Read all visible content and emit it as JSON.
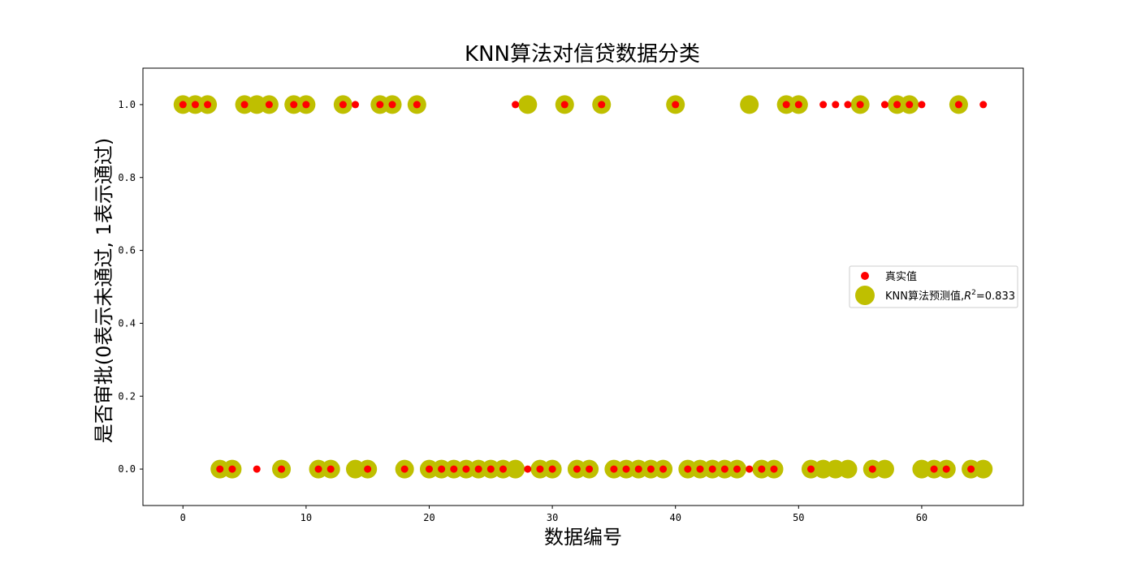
{
  "chart_data": {
    "type": "scatter",
    "title": "KNN算法对信贷数据分类",
    "xlabel": "数据编号",
    "ylabel": "是否审批(0表示未通过, 1表示通过)",
    "xlim": [
      -3.25,
      68.25
    ],
    "ylim": [
      -0.1,
      1.1
    ],
    "xticks": [
      0,
      10,
      20,
      30,
      40,
      50,
      60
    ],
    "yticks": [
      0.0,
      0.2,
      0.4,
      0.6,
      0.8,
      1.0
    ],
    "xtick_labels": [
      "0",
      "10",
      "20",
      "30",
      "40",
      "50",
      "60"
    ],
    "ytick_labels": [
      "0.0",
      "0.2",
      "0.4",
      "0.6",
      "0.8",
      "1.0"
    ],
    "grid": false,
    "legend_position": "center-right",
    "legend": {
      "actual": "真实值",
      "predicted_prefix": "KNN算法预测值,",
      "predicted_r": "R",
      "predicted_sup": "2",
      "predicted_suffix": "=0.833"
    },
    "series": [
      {
        "name": "KNN算法预测值, R²=0.833",
        "color": "#bfbf00",
        "x": [
          0,
          1,
          2,
          3,
          4,
          5,
          6,
          7,
          8,
          9,
          10,
          11,
          12,
          13,
          14,
          15,
          16,
          17,
          18,
          19,
          20,
          21,
          22,
          23,
          24,
          25,
          26,
          27,
          28,
          29,
          30,
          31,
          32,
          33,
          34,
          35,
          36,
          37,
          38,
          39,
          40,
          41,
          42,
          43,
          44,
          45,
          46,
          47,
          48,
          49,
          50,
          51,
          52,
          53,
          54,
          55,
          56,
          57,
          58,
          59,
          60,
          61,
          62,
          63,
          64,
          65
        ],
        "y": [
          1,
          1,
          1,
          0,
          0,
          1,
          1,
          1,
          0,
          1,
          1,
          0,
          0,
          1,
          0,
          0,
          1,
          1,
          0,
          1,
          0,
          0,
          0,
          0,
          0,
          0,
          0,
          0,
          1,
          0,
          0,
          1,
          0,
          0,
          1,
          0,
          0,
          0,
          0,
          0,
          1,
          0,
          0,
          0,
          0,
          0,
          1,
          0,
          0,
          1,
          1,
          0,
          0,
          0,
          0,
          1,
          0,
          0,
          1,
          1,
          0,
          0,
          0,
          1,
          0,
          0
        ]
      },
      {
        "name": "真实值",
        "color": "#ff0000",
        "x": [
          0,
          1,
          2,
          3,
          4,
          5,
          6,
          7,
          8,
          9,
          10,
          11,
          12,
          13,
          14,
          15,
          16,
          17,
          18,
          19,
          20,
          21,
          22,
          23,
          24,
          25,
          26,
          27,
          28,
          29,
          30,
          31,
          32,
          33,
          34,
          35,
          36,
          37,
          38,
          39,
          40,
          41,
          42,
          43,
          44,
          45,
          46,
          47,
          48,
          49,
          50,
          51,
          52,
          53,
          54,
          55,
          56,
          57,
          58,
          59,
          60,
          61,
          62,
          63,
          64,
          65
        ],
        "y": [
          1,
          1,
          1,
          0,
          0,
          1,
          0,
          1,
          0,
          1,
          1,
          0,
          0,
          1,
          1,
          0,
          1,
          1,
          0,
          1,
          0,
          0,
          0,
          0,
          0,
          0,
          0,
          1,
          0,
          0,
          0,
          1,
          0,
          0,
          1,
          0,
          0,
          0,
          0,
          0,
          1,
          0,
          0,
          0,
          0,
          0,
          0,
          0,
          0,
          1,
          1,
          0,
          1,
          1,
          1,
          1,
          0,
          1,
          1,
          1,
          1,
          0,
          0,
          1,
          0,
          1
        ]
      }
    ]
  }
}
